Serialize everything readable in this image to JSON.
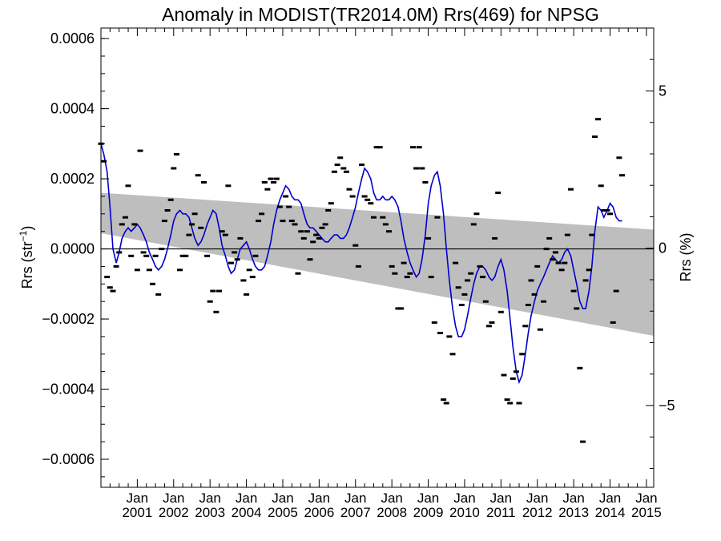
{
  "chart_data": {
    "type": "scatter",
    "title": "Anomaly in MODIST(TR2014.0M) Rrs(469) for NPSG",
    "ylabel_left_main": "Rrs (str",
    "ylabel_left_sup": "−1",
    "ylabel_left_close": ")",
    "ylabel_right": "Rrs (%)",
    "ylim_left": [
      -0.00068,
      0.00063
    ],
    "ylim_right": [
      -7.6,
      7.0
    ],
    "xlim": [
      2000.0,
      2015.2
    ],
    "left_ticks": [
      {
        "value": 0.0006,
        "label": "0.0006"
      },
      {
        "value": 0.0004,
        "label": "0.0004"
      },
      {
        "value": 0.0002,
        "label": "0.0002"
      },
      {
        "value": 0.0,
        "label": "0.0000"
      },
      {
        "value": -0.0002,
        "label": "−0.0002"
      },
      {
        "value": -0.0004,
        "label": "−0.0004"
      },
      {
        "value": -0.0006,
        "label": "−0.0006"
      }
    ],
    "right_ticks": [
      {
        "value": 5,
        "label": "5"
      },
      {
        "value": 0,
        "label": "0"
      },
      {
        "value": -5,
        "label": "−5"
      }
    ],
    "x_ticks": [
      {
        "value": 2001,
        "month": "Jan",
        "year": "2001"
      },
      {
        "value": 2002,
        "month": "Jan",
        "year": "2002"
      },
      {
        "value": 2003,
        "month": "Jan",
        "year": "2003"
      },
      {
        "value": 2004,
        "month": "Jan",
        "year": "2004"
      },
      {
        "value": 2005,
        "month": "Jan",
        "year": "2005"
      },
      {
        "value": 2006,
        "month": "Jan",
        "year": "2006"
      },
      {
        "value": 2007,
        "month": "Jan",
        "year": "2007"
      },
      {
        "value": 2008,
        "month": "Jan",
        "year": "2008"
      },
      {
        "value": 2009,
        "month": "Jan",
        "year": "2009"
      },
      {
        "value": 2010,
        "month": "Jan",
        "year": "2010"
      },
      {
        "value": 2011,
        "month": "Jan",
        "year": "2011"
      },
      {
        "value": 2012,
        "month": "Jan",
        "year": "2012"
      },
      {
        "value": 2013,
        "month": "Jan",
        "year": "2013"
      },
      {
        "value": 2014,
        "month": "Jan",
        "year": "2014"
      },
      {
        "value": 2015,
        "month": "Jan",
        "year": "2015"
      }
    ],
    "envelope": {
      "color": "#bebebe",
      "upper": [
        [
          2000.0,
          0.00016
        ],
        [
          2015.2,
          5.5e-05
        ]
      ],
      "lower": [
        [
          2000.0,
          4.5e-05
        ],
        [
          2015.2,
          -0.000248
        ]
      ]
    },
    "zero_line": 0,
    "line_color": "#0000cc",
    "marker_color": "#000000",
    "smoothed_series": [
      [
        2000.0,
        0.0003
      ],
      [
        2000.08,
        0.00027
      ],
      [
        2000.17,
        0.00022
      ],
      [
        2000.25,
        0.00012
      ],
      [
        2000.33,
        0.0
      ],
      [
        2000.42,
        -4e-05
      ],
      [
        2000.5,
        -1e-05
      ],
      [
        2000.58,
        3e-05
      ],
      [
        2000.67,
        5e-05
      ],
      [
        2000.75,
        6e-05
      ],
      [
        2000.83,
        5e-05
      ],
      [
        2000.92,
        6e-05
      ],
      [
        2001.0,
        7e-05
      ],
      [
        2001.08,
        6e-05
      ],
      [
        2001.17,
        4e-05
      ],
      [
        2001.25,
        2e-05
      ],
      [
        2001.33,
        -1e-05
      ],
      [
        2001.42,
        -3e-05
      ],
      [
        2001.5,
        -5e-05
      ],
      [
        2001.58,
        -6e-05
      ],
      [
        2001.67,
        -5e-05
      ],
      [
        2001.75,
        -3e-05
      ],
      [
        2001.83,
        0.0
      ],
      [
        2001.92,
        4e-05
      ],
      [
        2002.0,
        8e-05
      ],
      [
        2002.08,
        0.0001
      ],
      [
        2002.17,
        0.00011
      ],
      [
        2002.25,
        0.0001
      ],
      [
        2002.33,
        0.0001
      ],
      [
        2002.42,
        9e-05
      ],
      [
        2002.5,
        6e-05
      ],
      [
        2002.58,
        3e-05
      ],
      [
        2002.67,
        1e-05
      ],
      [
        2002.75,
        2e-05
      ],
      [
        2002.83,
        4e-05
      ],
      [
        2002.92,
        7e-05
      ],
      [
        2003.0,
        9e-05
      ],
      [
        2003.08,
        0.00011
      ],
      [
        2003.17,
        0.0001
      ],
      [
        2003.25,
        6e-05
      ],
      [
        2003.33,
        1e-05
      ],
      [
        2003.42,
        -2e-05
      ],
      [
        2003.5,
        -5e-05
      ],
      [
        2003.58,
        -7e-05
      ],
      [
        2003.67,
        -6e-05
      ],
      [
        2003.75,
        -3e-05
      ],
      [
        2003.83,
        0.0
      ],
      [
        2003.92,
        1e-05
      ],
      [
        2004.0,
        2e-05
      ],
      [
        2004.08,
        0.0
      ],
      [
        2004.17,
        -3e-05
      ],
      [
        2004.25,
        -5e-05
      ],
      [
        2004.33,
        -6e-05
      ],
      [
        2004.42,
        -6e-05
      ],
      [
        2004.5,
        -5e-05
      ],
      [
        2004.58,
        -2e-05
      ],
      [
        2004.67,
        2e-05
      ],
      [
        2004.75,
        7e-05
      ],
      [
        2004.83,
        0.00011
      ],
      [
        2004.92,
        0.00014
      ],
      [
        2005.0,
        0.00016
      ],
      [
        2005.08,
        0.00018
      ],
      [
        2005.17,
        0.00017
      ],
      [
        2005.25,
        0.00015
      ],
      [
        2005.33,
        0.00014
      ],
      [
        2005.42,
        0.00014
      ],
      [
        2005.5,
        0.00013
      ],
      [
        2005.58,
        0.0001
      ],
      [
        2005.67,
        7e-05
      ],
      [
        2005.75,
        6e-05
      ],
      [
        2005.83,
        6e-05
      ],
      [
        2005.92,
        5e-05
      ],
      [
        2006.0,
        4e-05
      ],
      [
        2006.08,
        3e-05
      ],
      [
        2006.17,
        2e-05
      ],
      [
        2006.25,
        2e-05
      ],
      [
        2006.33,
        3e-05
      ],
      [
        2006.42,
        4e-05
      ],
      [
        2006.5,
        4e-05
      ],
      [
        2006.58,
        3e-05
      ],
      [
        2006.67,
        3e-05
      ],
      [
        2006.75,
        4e-05
      ],
      [
        2006.83,
        6e-05
      ],
      [
        2006.92,
        9e-05
      ],
      [
        2007.0,
        0.00012
      ],
      [
        2007.08,
        0.00016
      ],
      [
        2007.17,
        0.0002
      ],
      [
        2007.25,
        0.00023
      ],
      [
        2007.33,
        0.00022
      ],
      [
        2007.42,
        0.0002
      ],
      [
        2007.5,
        0.00016
      ],
      [
        2007.58,
        0.00014
      ],
      [
        2007.67,
        0.00014
      ],
      [
        2007.75,
        0.00015
      ],
      [
        2007.83,
        0.00014
      ],
      [
        2007.92,
        0.00014
      ],
      [
        2008.0,
        0.00015
      ],
      [
        2008.08,
        0.00014
      ],
      [
        2008.17,
        0.00012
      ],
      [
        2008.25,
        8e-05
      ],
      [
        2008.33,
        3e-05
      ],
      [
        2008.42,
        -1e-05
      ],
      [
        2008.5,
        -4e-05
      ],
      [
        2008.58,
        -6e-05
      ],
      [
        2008.67,
        -8e-05
      ],
      [
        2008.75,
        -7e-05
      ],
      [
        2008.83,
        -3e-05
      ],
      [
        2008.92,
        4e-05
      ],
      [
        2009.0,
        0.00013
      ],
      [
        2009.08,
        0.00018
      ],
      [
        2009.17,
        0.00021
      ],
      [
        2009.25,
        0.00022
      ],
      [
        2009.33,
        0.00018
      ],
      [
        2009.42,
        0.0001
      ],
      [
        2009.5,
        0.0
      ],
      [
        2009.58,
        -9e-05
      ],
      [
        2009.67,
        -0.00017
      ],
      [
        2009.75,
        -0.00022
      ],
      [
        2009.83,
        -0.00025
      ],
      [
        2009.92,
        -0.00025
      ],
      [
        2010.0,
        -0.00023
      ],
      [
        2010.08,
        -0.00019
      ],
      [
        2010.17,
        -0.00014
      ],
      [
        2010.25,
        -0.0001
      ],
      [
        2010.33,
        -7e-05
      ],
      [
        2010.42,
        -5e-05
      ],
      [
        2010.5,
        -5e-05
      ],
      [
        2010.58,
        -6e-05
      ],
      [
        2010.67,
        -8e-05
      ],
      [
        2010.75,
        -9e-05
      ],
      [
        2010.83,
        -8e-05
      ],
      [
        2010.92,
        -5e-05
      ],
      [
        2011.0,
        -3e-05
      ],
      [
        2011.08,
        -6e-05
      ],
      [
        2011.17,
        -0.00012
      ],
      [
        2011.25,
        -0.0002
      ],
      [
        2011.33,
        -0.00028
      ],
      [
        2011.42,
        -0.00035
      ],
      [
        2011.5,
        -0.00038
      ],
      [
        2011.58,
        -0.00036
      ],
      [
        2011.67,
        -0.0003
      ],
      [
        2011.75,
        -0.00024
      ],
      [
        2011.83,
        -0.00019
      ],
      [
        2011.92,
        -0.00015
      ],
      [
        2012.0,
        -0.00012
      ],
      [
        2012.08,
        -0.0001
      ],
      [
        2012.17,
        -8e-05
      ],
      [
        2012.25,
        -6e-05
      ],
      [
        2012.33,
        -4e-05
      ],
      [
        2012.42,
        -2e-05
      ],
      [
        2012.5,
        -3e-05
      ],
      [
        2012.58,
        -4e-05
      ],
      [
        2012.67,
        -3e-05
      ],
      [
        2012.75,
        -1e-05
      ],
      [
        2012.83,
        0.0
      ],
      [
        2012.92,
        -2e-05
      ],
      [
        2013.0,
        -6e-05
      ],
      [
        2013.08,
        -0.0001
      ],
      [
        2013.17,
        -0.00015
      ],
      [
        2013.25,
        -0.00017
      ],
      [
        2013.33,
        -0.00017
      ],
      [
        2013.42,
        -0.00012
      ],
      [
        2013.5,
        -5e-05
      ],
      [
        2013.58,
        5e-05
      ],
      [
        2013.67,
        0.00012
      ],
      [
        2013.75,
        0.00011
      ],
      [
        2013.83,
        9e-05
      ],
      [
        2013.92,
        0.00011
      ],
      [
        2014.0,
        0.00013
      ],
      [
        2014.08,
        0.00012
      ],
      [
        2014.17,
        9e-05
      ],
      [
        2014.25,
        8e-05
      ],
      [
        2014.33,
        8e-05
      ]
    ],
    "monthly_points": [
      [
        2000.0,
        0.0003
      ],
      [
        2000.08,
        0.00025
      ],
      [
        2000.17,
        -8e-05
      ],
      [
        2000.25,
        -0.00011
      ],
      [
        2000.33,
        -0.00012
      ],
      [
        2000.42,
        -5e-05
      ],
      [
        2000.5,
        -1e-05
      ],
      [
        2000.58,
        7e-05
      ],
      [
        2000.67,
        9e-05
      ],
      [
        2000.75,
        0.00018
      ],
      [
        2000.83,
        -2e-05
      ],
      [
        2000.92,
        7e-05
      ],
      [
        2001.0,
        -6e-05
      ],
      [
        2001.08,
        0.00028
      ],
      [
        2001.17,
        -1e-05
      ],
      [
        2001.25,
        -2e-05
      ],
      [
        2001.33,
        -6e-05
      ],
      [
        2001.42,
        -0.0001
      ],
      [
        2001.5,
        -2e-05
      ],
      [
        2001.58,
        -0.00013
      ],
      [
        2001.67,
        0.0
      ],
      [
        2001.75,
        8e-05
      ],
      [
        2001.83,
        0.00011
      ],
      [
        2001.92,
        0.00014
      ],
      [
        2002.0,
        0.00023
      ],
      [
        2002.08,
        0.00027
      ],
      [
        2002.17,
        -6e-05
      ],
      [
        2002.25,
        -2e-05
      ],
      [
        2002.33,
        -2e-05
      ],
      [
        2002.42,
        4e-05
      ],
      [
        2002.5,
        7e-05
      ],
      [
        2002.58,
        0.0001
      ],
      [
        2002.67,
        0.00021
      ],
      [
        2002.75,
        6e-05
      ],
      [
        2002.83,
        0.00019
      ],
      [
        2002.92,
        -2e-05
      ],
      [
        2003.0,
        -0.00015
      ],
      [
        2003.08,
        -0.00012
      ],
      [
        2003.17,
        -0.00018
      ],
      [
        2003.25,
        -0.00012
      ],
      [
        2003.33,
        5e-05
      ],
      [
        2003.42,
        4e-05
      ],
      [
        2003.5,
        0.00018
      ],
      [
        2003.58,
        -4e-05
      ],
      [
        2003.67,
        -1e-05
      ],
      [
        2003.75,
        -3e-05
      ],
      [
        2003.83,
        3e-05
      ],
      [
        2003.92,
        -9e-05
      ],
      [
        2004.0,
        -0.00013
      ],
      [
        2004.08,
        -6e-05
      ],
      [
        2004.17,
        -8e-05
      ],
      [
        2004.25,
        -2e-05
      ],
      [
        2004.33,
        8e-05
      ],
      [
        2004.42,
        0.0001
      ],
      [
        2004.5,
        0.00019
      ],
      [
        2004.58,
        0.00017
      ],
      [
        2004.67,
        0.0002
      ],
      [
        2004.75,
        0.00019
      ],
      [
        2004.83,
        0.0002
      ],
      [
        2004.92,
        0.00012
      ],
      [
        2005.0,
        8e-05
      ],
      [
        2005.08,
        0.00015
      ],
      [
        2005.17,
        0.00012
      ],
      [
        2005.25,
        8e-05
      ],
      [
        2005.33,
        7e-05
      ],
      [
        2005.42,
        -7e-05
      ],
      [
        2005.5,
        5e-05
      ],
      [
        2005.58,
        3e-05
      ],
      [
        2005.67,
        5e-05
      ],
      [
        2005.75,
        -3e-05
      ],
      [
        2005.83,
        2e-05
      ],
      [
        2005.92,
        4e-05
      ],
      [
        2006.0,
        3e-05
      ],
      [
        2006.08,
        6e-05
      ],
      [
        2006.17,
        7e-05
      ],
      [
        2006.25,
        0.00011
      ],
      [
        2006.33,
        0.00013
      ],
      [
        2006.42,
        0.00022
      ],
      [
        2006.5,
        0.00024
      ],
      [
        2006.58,
        0.00026
      ],
      [
        2006.67,
        0.00023
      ],
      [
        2006.75,
        0.00022
      ],
      [
        2006.83,
        0.00017
      ],
      [
        2006.92,
        0.00015
      ],
      [
        2007.0,
        1e-05
      ],
      [
        2007.08,
        -5e-05
      ],
      [
        2007.17,
        0.00024
      ],
      [
        2007.25,
        0.00015
      ],
      [
        2007.33,
        0.00014
      ],
      [
        2007.42,
        0.00013
      ],
      [
        2007.5,
        9e-05
      ],
      [
        2007.58,
        0.00029
      ],
      [
        2007.67,
        0.00029
      ],
      [
        2007.75,
        9e-05
      ],
      [
        2007.83,
        7e-05
      ],
      [
        2007.92,
        5e-05
      ],
      [
        2008.0,
        -5e-05
      ],
      [
        2008.08,
        -7e-05
      ],
      [
        2008.17,
        -0.00017
      ],
      [
        2008.25,
        -0.00017
      ],
      [
        2008.33,
        -4e-05
      ],
      [
        2008.42,
        -8e-05
      ],
      [
        2008.5,
        -7e-05
      ],
      [
        2008.58,
        0.00029
      ],
      [
        2008.67,
        0.00023
      ],
      [
        2008.75,
        0.00029
      ],
      [
        2008.83,
        0.00023
      ],
      [
        2008.92,
        0.00019
      ],
      [
        2009.0,
        3e-05
      ],
      [
        2009.08,
        -8e-05
      ],
      [
        2009.17,
        -0.00021
      ],
      [
        2009.25,
        9e-05
      ],
      [
        2009.33,
        -0.00024
      ],
      [
        2009.42,
        -0.00043
      ],
      [
        2009.5,
        -0.00044
      ],
      [
        2009.58,
        -0.00025
      ],
      [
        2009.67,
        -0.0003
      ],
      [
        2009.75,
        -4e-05
      ],
      [
        2009.83,
        -0.00011
      ],
      [
        2009.92,
        -0.00016
      ],
      [
        2010.0,
        -0.00013
      ],
      [
        2010.08,
        -9e-05
      ],
      [
        2010.17,
        -7e-05
      ],
      [
        2010.25,
        7e-05
      ],
      [
        2010.33,
        0.0001
      ],
      [
        2010.42,
        -5e-05
      ],
      [
        2010.5,
        -8e-05
      ],
      [
        2010.58,
        -0.00015
      ],
      [
        2010.67,
        -0.00022
      ],
      [
        2010.75,
        -0.00021
      ],
      [
        2010.83,
        3e-05
      ],
      [
        2010.92,
        0.00016
      ],
      [
        2011.0,
        -0.00018
      ],
      [
        2011.08,
        -0.00036
      ],
      [
        2011.17,
        -0.00043
      ],
      [
        2011.25,
        -0.00044
      ],
      [
        2011.33,
        -0.00037
      ],
      [
        2011.42,
        -0.00035
      ],
      [
        2011.5,
        -0.00044
      ],
      [
        2011.58,
        -0.0003
      ],
      [
        2011.67,
        -0.00022
      ],
      [
        2011.75,
        -0.00016
      ],
      [
        2011.83,
        -9e-05
      ],
      [
        2011.92,
        -0.00013
      ],
      [
        2012.0,
        -5e-05
      ],
      [
        2012.08,
        -0.00023
      ],
      [
        2012.17,
        -0.00015
      ],
      [
        2012.25,
        0.0
      ],
      [
        2012.33,
        3e-05
      ],
      [
        2012.42,
        -3e-05
      ],
      [
        2012.5,
        -1e-05
      ],
      [
        2012.58,
        -4e-05
      ],
      [
        2012.67,
        -6e-05
      ],
      [
        2012.75,
        -4e-05
      ],
      [
        2012.83,
        4e-05
      ],
      [
        2012.92,
        0.00017
      ],
      [
        2013.0,
        -0.00012
      ],
      [
        2013.08,
        -0.00017
      ],
      [
        2013.17,
        -0.00034
      ],
      [
        2013.25,
        -0.00055
      ],
      [
        2013.33,
        -9e-05
      ],
      [
        2013.42,
        -6e-05
      ],
      [
        2013.5,
        4e-05
      ],
      [
        2013.58,
        0.00032
      ],
      [
        2013.67,
        0.00037
      ],
      [
        2013.75,
        0.00018
      ],
      [
        2013.83,
        0.00011
      ],
      [
        2013.92,
        0.00011
      ],
      [
        2014.0,
        0.0001
      ],
      [
        2014.08,
        -0.00021
      ],
      [
        2014.17,
        -0.00012
      ],
      [
        2014.25,
        0.00026
      ],
      [
        2014.33,
        0.00021
      ]
    ],
    "grid": false,
    "legend": "none"
  }
}
